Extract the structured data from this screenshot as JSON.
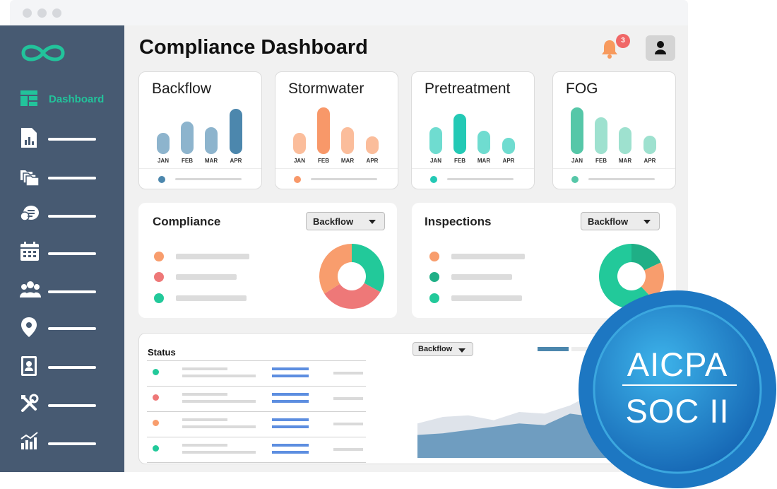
{
  "app": {
    "title": "Compliance Dashboard",
    "notification_count": "3",
    "accent": "#22c39b",
    "sidebar_bg": "#475a72"
  },
  "sidebar": {
    "items": [
      {
        "label": "Dashboard",
        "icon": "dashboard-icon",
        "active": true
      },
      {
        "label": "",
        "icon": "report-icon"
      },
      {
        "label": "",
        "icon": "folders-icon"
      },
      {
        "label": "",
        "icon": "chat-icon"
      },
      {
        "label": "",
        "icon": "calendar-icon"
      },
      {
        "label": "",
        "icon": "users-icon"
      },
      {
        "label": "",
        "icon": "location-pin-icon"
      },
      {
        "label": "",
        "icon": "contact-book-icon"
      },
      {
        "label": "",
        "icon": "tools-icon"
      },
      {
        "label": "",
        "icon": "analytics-icon"
      }
    ]
  },
  "cards": [
    {
      "title": "Backflow",
      "color": "#4c87ad",
      "light": "#8db4cd"
    },
    {
      "title": "Stormwater",
      "color": "#f89869",
      "light": "#fbbd9b"
    },
    {
      "title": "Pretreatment",
      "color": "#23c9b5",
      "light": "#6fdcd0"
    },
    {
      "title": "FOG",
      "color": "#56c7a8",
      "light": "#9ee1cf"
    }
  ],
  "chart_data": [
    {
      "type": "bar",
      "title": "Backflow",
      "categories": [
        "JAN",
        "FEB",
        "MAR",
        "APR"
      ],
      "values": [
        30,
        46,
        38,
        64
      ],
      "highlight": "APR"
    },
    {
      "type": "bar",
      "title": "Stormwater",
      "categories": [
        "JAN",
        "FEB",
        "MAR",
        "APR"
      ],
      "values": [
        30,
        66,
        38,
        25
      ],
      "highlight": "FEB"
    },
    {
      "type": "bar",
      "title": "Pretreatment",
      "categories": [
        "JAN",
        "FEB",
        "MAR",
        "APR"
      ],
      "values": [
        38,
        57,
        33,
        23
      ],
      "highlight": "FEB"
    },
    {
      "type": "bar",
      "title": "FOG",
      "categories": [
        "JAN",
        "FEB",
        "MAR",
        "APR"
      ],
      "values": [
        66,
        52,
        38,
        26
      ],
      "highlight": "JAN"
    },
    {
      "type": "pie",
      "title": "Compliance",
      "slices": [
        {
          "value": 33,
          "color": "#22c99a"
        },
        {
          "value": 33,
          "color": "#ee7878"
        },
        {
          "value": 34,
          "color": "#f89d6d"
        }
      ]
    },
    {
      "type": "pie",
      "title": "Inspections",
      "slices": [
        {
          "value": 18,
          "color": "#1faf86"
        },
        {
          "value": 20,
          "color": "#f89d6d"
        },
        {
          "value": 62,
          "color": "#22c99a"
        }
      ]
    },
    {
      "type": "area",
      "title": "",
      "x": [
        0,
        1,
        2,
        3,
        4,
        5,
        6,
        7,
        8,
        9,
        10
      ],
      "series": [
        {
          "values": [
            42,
            50,
            52,
            46,
            56,
            54,
            64,
            80,
            85,
            90,
            94
          ],
          "color": "#dee3ea"
        },
        {
          "values": [
            28,
            30,
            34,
            38,
            42,
            40,
            54,
            50,
            60,
            56,
            70
          ],
          "color": "#6f9dc0"
        }
      ]
    }
  ],
  "panels": {
    "compliance": {
      "title": "Compliance",
      "filter": "Backflow",
      "legend_colors": [
        "#f89d6d",
        "#ee7878",
        "#22c99a"
      ]
    },
    "inspections": {
      "title": "Inspections",
      "filter": "Backflow",
      "legend_colors": [
        "#f89d6d",
        "#1faf86",
        "#22c99a"
      ]
    },
    "status": {
      "title": "Status",
      "filter": "Backflow",
      "row_colors": [
        "#22c99a",
        "#ee7878",
        "#f89d6d",
        "#22c99a"
      ]
    }
  },
  "seal": {
    "line1": "AICPA",
    "line2": "SOC II"
  }
}
